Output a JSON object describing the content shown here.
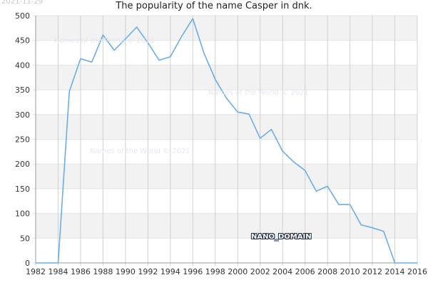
{
  "header": {
    "date_stamp": "2021-11-29",
    "title": "The popularity of the name Casper in dnk."
  },
  "watermarks": [
    "Names of the World © 2021",
    "Names of the World © 2021",
    "Names of the World © 2021"
  ],
  "nano_label": "NANO_DOMAIN",
  "colors": {
    "line": "#6aaee8",
    "band": "#f2f2f2",
    "grid": "#d0d0d0"
  },
  "chart_data": {
    "type": "line",
    "title": "The popularity of the name Casper in dnk.",
    "xlabel": "",
    "ylabel": "",
    "xlim": [
      1982,
      2016
    ],
    "ylim": [
      0,
      500
    ],
    "x_ticks": [
      1982,
      1984,
      1986,
      1988,
      1990,
      1992,
      1994,
      1996,
      1998,
      2000,
      2002,
      2004,
      2006,
      2008,
      2010,
      2012,
      2014,
      2016
    ],
    "y_ticks": [
      0,
      50,
      100,
      150,
      200,
      250,
      300,
      350,
      400,
      450,
      500
    ],
    "grid": true,
    "series": [
      {
        "x": [
          1982,
          1983,
          1984,
          1985,
          1986,
          1987,
          1988,
          1989,
          1990,
          1991,
          1992,
          1993,
          1994,
          1995,
          1996,
          1997,
          1998,
          1999,
          2000,
          2001,
          2002,
          2003,
          2004,
          2005,
          2006,
          2007,
          2008,
          2009,
          2010,
          2011,
          2012,
          2013,
          2014,
          2015,
          2016
        ],
        "values": [
          0,
          0,
          0,
          347,
          413,
          406,
          461,
          430,
          453,
          477,
          445,
          410,
          417,
          458,
          494,
          424,
          371,
          333,
          305,
          301,
          252,
          270,
          226,
          204,
          187,
          145,
          155,
          118,
          118,
          77,
          71,
          64,
          0,
          0,
          0
        ]
      }
    ]
  }
}
